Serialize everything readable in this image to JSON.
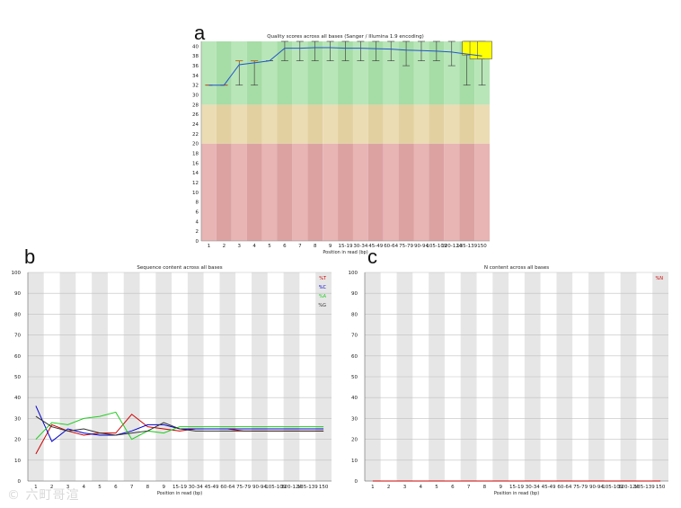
{
  "panel_labels": {
    "a": "a",
    "b": "b",
    "c": "c"
  },
  "watermark": "© 六町哥渲",
  "chart_data": [
    {
      "type": "boxplot",
      "id": "a",
      "title": "Quality scores across all bases (Sanger / Illumina 1.9 encoding)",
      "xlabel": "Position in read (bp)",
      "ylabel": "",
      "categories": [
        "1",
        "2",
        "3",
        "4",
        "5",
        "6",
        "7",
        "8",
        "9",
        "15-19",
        "30-34",
        "45-49",
        "60-64",
        "75-79",
        "90-94",
        "105-109",
        "120-124",
        "135-139",
        "150"
      ],
      "ylim": [
        0,
        41
      ],
      "yticks": [
        0,
        2,
        4,
        6,
        8,
        10,
        12,
        14,
        16,
        18,
        20,
        22,
        24,
        26,
        28,
        30,
        32,
        34,
        36,
        38,
        40
      ],
      "zones": [
        {
          "from": 0,
          "to": 20,
          "color": "#e8b4b4",
          "band": "#dca2a2"
        },
        {
          "from": 20,
          "to": 28,
          "color": "#ecdcb4",
          "band": "#e2d0a0"
        },
        {
          "from": 28,
          "to": 41,
          "color": "#b8e6b8",
          "band": "#a6dca6"
        }
      ],
      "mean_line": [
        32,
        32,
        36.2,
        36.6,
        37.0,
        39.6,
        39.6,
        39.7,
        39.7,
        39.6,
        39.6,
        39.5,
        39.4,
        39.2,
        39.1,
        39.0,
        38.8,
        38.4,
        38.0
      ],
      "whiskers": [
        [
          32,
          32
        ],
        [
          32,
          32
        ],
        [
          32,
          37
        ],
        [
          32,
          37
        ],
        [
          37,
          37
        ],
        [
          37,
          41
        ],
        [
          37,
          41
        ],
        [
          37,
          41
        ],
        [
          37,
          41
        ],
        [
          37,
          41
        ],
        [
          37,
          41
        ],
        [
          37,
          41
        ],
        [
          37,
          41
        ],
        [
          36,
          41
        ],
        [
          37,
          41
        ],
        [
          37,
          41
        ],
        [
          36,
          41
        ],
        [
          32,
          41
        ],
        [
          32,
          41
        ]
      ],
      "yellow_boxes": [
        {
          "index": 17.2,
          "q1": 38.2,
          "q3": 41
        },
        {
          "index": 17.7,
          "q1": 37.4,
          "q3": 41
        },
        {
          "index": 18.2,
          "q1": 37.4,
          "q3": 41
        }
      ]
    },
    {
      "type": "line",
      "id": "b",
      "title": "Sequence content across all bases",
      "xlabel": "Position in read (bp)",
      "categories": [
        "1",
        "2",
        "3",
        "4",
        "5",
        "6",
        "7",
        "8",
        "9",
        "15-19",
        "30-34",
        "45-49",
        "60-64",
        "75-79",
        "90-94",
        "105-109",
        "120-124",
        "135-139",
        "150"
      ],
      "ylim": [
        0,
        100
      ],
      "yticks": [
        0,
        10,
        20,
        30,
        40,
        50,
        60,
        70,
        80,
        90,
        100
      ],
      "series": [
        {
          "name": "%T",
          "color": "#cc0000",
          "values": [
            13,
            27,
            24,
            22,
            23,
            23,
            32,
            26,
            25,
            24,
            25,
            25,
            25,
            24,
            24,
            24,
            24,
            24,
            24
          ]
        },
        {
          "name": "%C",
          "color": "#0000cc",
          "values": [
            36,
            19,
            25,
            23,
            22,
            22,
            24,
            27,
            27,
            25,
            25,
            25,
            25,
            25,
            25,
            25,
            25,
            25,
            25
          ]
        },
        {
          "name": "%A",
          "color": "#22cc22",
          "values": [
            20,
            28,
            27,
            30,
            31,
            33,
            20,
            24,
            23,
            26,
            26,
            26,
            26,
            26,
            26,
            26,
            26,
            26,
            26
          ]
        },
        {
          "name": "%G",
          "color": "#333333",
          "values": [
            31,
            26,
            24,
            25,
            23,
            22,
            23,
            24,
            28,
            25,
            24,
            24,
            24,
            24,
            24,
            24,
            24,
            24,
            24
          ]
        }
      ]
    },
    {
      "type": "line",
      "id": "c",
      "title": "N content across all bases",
      "xlabel": "Position in read (bp)",
      "categories": [
        "1",
        "2",
        "3",
        "4",
        "5",
        "6",
        "7",
        "8",
        "9",
        "15-19",
        "30-34",
        "45-49",
        "60-64",
        "75-79",
        "90-94",
        "105-109",
        "120-124",
        "135-139",
        "150"
      ],
      "ylim": [
        0,
        100
      ],
      "yticks": [
        0,
        10,
        20,
        30,
        40,
        50,
        60,
        70,
        80,
        90,
        100
      ],
      "series": [
        {
          "name": "%N",
          "color": "#cc0000",
          "values": [
            0,
            0,
            0,
            0,
            0,
            0,
            0,
            0,
            0,
            0,
            0,
            0,
            0,
            0,
            0,
            0,
            0,
            0,
            0
          ]
        }
      ]
    }
  ]
}
